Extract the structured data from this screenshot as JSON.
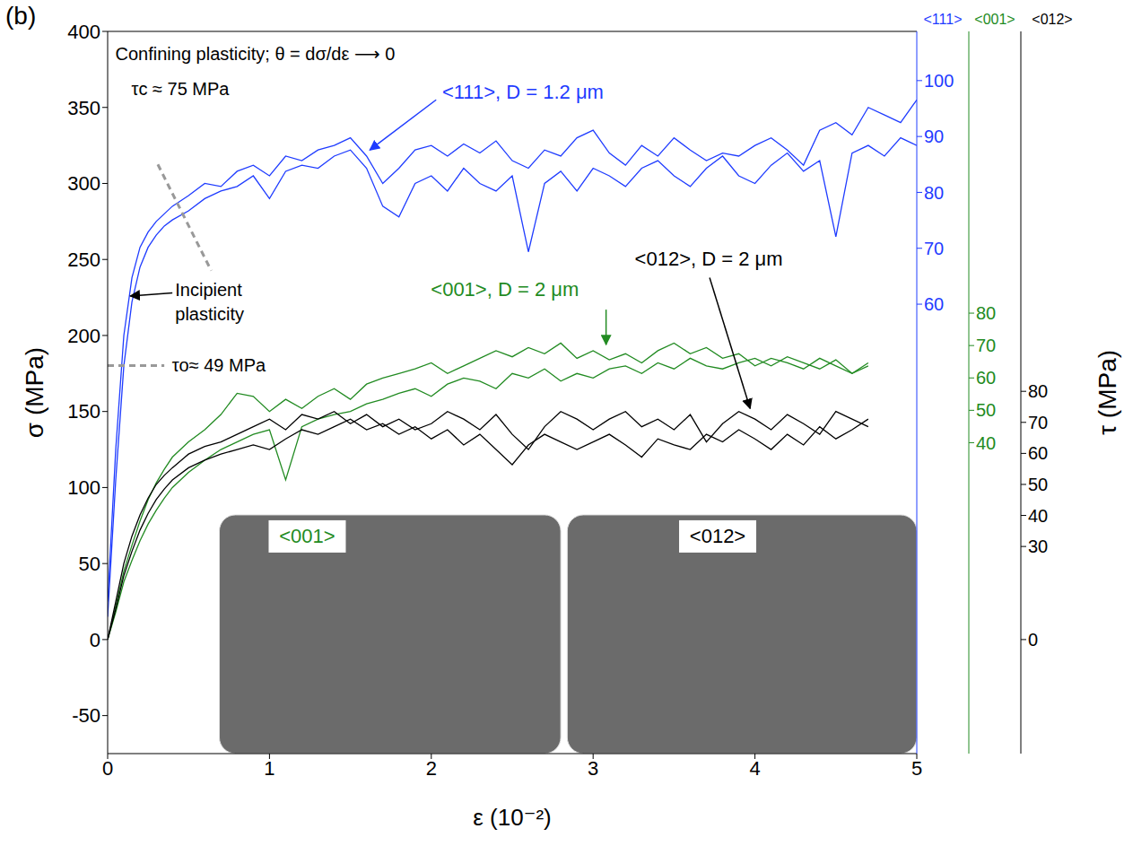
{
  "chart_data": {
    "type": "line",
    "panel_label": "(b)",
    "title": "Confining plasticity; θ = dσ/dε ⟶ 0",
    "x_label": "ε (10⁻²)",
    "y_label": "σ (MPa)",
    "y2_label": "τ (MPa)",
    "xlim": [
      0,
      5
    ],
    "xticks": [
      0,
      1,
      2,
      3,
      4,
      5
    ],
    "ylim": [
      -75,
      400
    ],
    "yticks": [
      -50,
      0,
      50,
      100,
      150,
      200,
      250,
      300,
      350,
      400
    ],
    "x": [
      0,
      0.05,
      0.1,
      0.15,
      0.2,
      0.25,
      0.3,
      0.35,
      0.4,
      0.5,
      0.6,
      0.7,
      0.8,
      0.9,
      1.0,
      1.1,
      1.2,
      1.3,
      1.4,
      1.5,
      1.6,
      1.7,
      1.8,
      1.9,
      2.0,
      2.1,
      2.2,
      2.3,
      2.4,
      2.5,
      2.6,
      2.7,
      2.8,
      2.9,
      3.0,
      3.1,
      3.2,
      3.3,
      3.4,
      3.5,
      3.6,
      3.7,
      3.8,
      3.9,
      4.0,
      4.1,
      4.2,
      4.3,
      4.4,
      4.5,
      4.6,
      4.7,
      4.8,
      4.9,
      5.0
    ],
    "series": [
      {
        "name": "<111>, D = 1.2 μm",
        "color": "#1f3cff",
        "tau_axis": {
          "label": "<111>",
          "ylim": [
            -20.4,
            108.8
          ],
          "yticks": [
            60,
            70,
            80,
            90,
            100
          ]
        },
        "curves": [
          [
            25,
            125,
            200,
            238,
            258,
            268,
            275,
            280,
            285,
            292,
            300,
            298,
            308,
            312,
            305,
            318,
            315,
            322,
            325,
            330,
            318,
            300,
            310,
            322,
            325,
            318,
            326,
            320,
            328,
            315,
            310,
            322,
            318,
            330,
            335,
            320,
            312,
            325,
            318,
            330,
            322,
            315,
            320,
            318,
            325,
            330,
            322,
            312,
            335,
            340,
            332,
            350,
            345,
            340,
            355
          ],
          [
            15,
            105,
            180,
            222,
            245,
            258,
            266,
            272,
            276,
            282,
            290,
            295,
            298,
            305,
            290,
            308,
            312,
            310,
            318,
            322,
            310,
            285,
            278,
            300,
            305,
            295,
            310,
            300,
            295,
            305,
            255,
            300,
            308,
            295,
            310,
            305,
            298,
            310,
            315,
            305,
            298,
            310,
            318,
            305,
            300,
            312,
            320,
            308,
            315,
            265,
            320,
            325,
            318,
            330,
            325
          ]
        ]
      },
      {
        "name": "<001>, D = 2 μm",
        "color": "#228b22",
        "tau_axis": {
          "label": "<001>",
          "ylim": [
            -56,
            167
          ],
          "yticks": [
            40,
            50,
            60,
            70,
            80
          ]
        },
        "curves": [
          [
            0,
            22,
            45,
            62,
            78,
            92,
            103,
            112,
            120,
            130,
            138,
            148,
            162,
            160,
            150,
            158,
            152,
            160,
            165,
            158,
            168,
            172,
            175,
            178,
            182,
            175,
            180,
            185,
            190,
            186,
            192,
            188,
            195,
            185,
            190,
            184,
            188,
            182,
            190,
            195,
            188,
            192,
            185,
            188,
            180,
            185,
            182,
            178,
            185,
            180,
            175,
            182,
            null,
            null,
            null
          ],
          [
            0,
            18,
            38,
            52,
            65,
            76,
            85,
            93,
            100,
            110,
            118,
            125,
            130,
            135,
            138,
            105,
            140,
            145,
            148,
            150,
            155,
            158,
            162,
            165,
            160,
            168,
            172,
            170,
            165,
            175,
            172,
            178,
            170,
            175,
            172,
            178,
            180,
            175,
            182,
            178,
            185,
            180,
            178,
            182,
            185,
            180,
            186,
            182,
            178,
            184,
            175,
            180,
            null,
            null,
            null
          ]
        ]
      },
      {
        "name": "<012>, D = 2 μm",
        "color": "#000000",
        "tau_axis": {
          "label": "<012>",
          "ylim": [
            -36.75,
            196
          ],
          "yticks": [
            0,
            30,
            40,
            50,
            60,
            70,
            80
          ]
        },
        "curves": [
          [
            0,
            25,
            50,
            68,
            82,
            93,
            102,
            108,
            113,
            122,
            127,
            130,
            135,
            140,
            145,
            138,
            148,
            145,
            150,
            142,
            148,
            140,
            145,
            138,
            142,
            150,
            145,
            138,
            148,
            135,
            125,
            140,
            150,
            145,
            138,
            145,
            150,
            140,
            145,
            138,
            148,
            130,
            142,
            150,
            145,
            138,
            148,
            142,
            135,
            150,
            145,
            140,
            null,
            null,
            null
          ],
          [
            0,
            20,
            42,
            58,
            72,
            83,
            92,
            99,
            105,
            113,
            118,
            122,
            125,
            128,
            125,
            132,
            138,
            135,
            140,
            145,
            138,
            142,
            135,
            140,
            132,
            138,
            128,
            135,
            125,
            115,
            128,
            135,
            130,
            125,
            130,
            135,
            128,
            120,
            132,
            128,
            125,
            135,
            130,
            138,
            132,
            125,
            135,
            128,
            140,
            132,
            138,
            145,
            null,
            null,
            null
          ]
        ]
      }
    ],
    "annotations": [
      {
        "text": "τc ≈ 75 MPa",
        "value": 75
      },
      {
        "text": "τo≈ 49 MPa",
        "value": 49
      },
      {
        "text": "Incipient plasticity"
      }
    ],
    "insets": [
      {
        "label": "<001>",
        "color": "#228b22"
      },
      {
        "label": "<012>",
        "color": "#000000"
      }
    ]
  }
}
